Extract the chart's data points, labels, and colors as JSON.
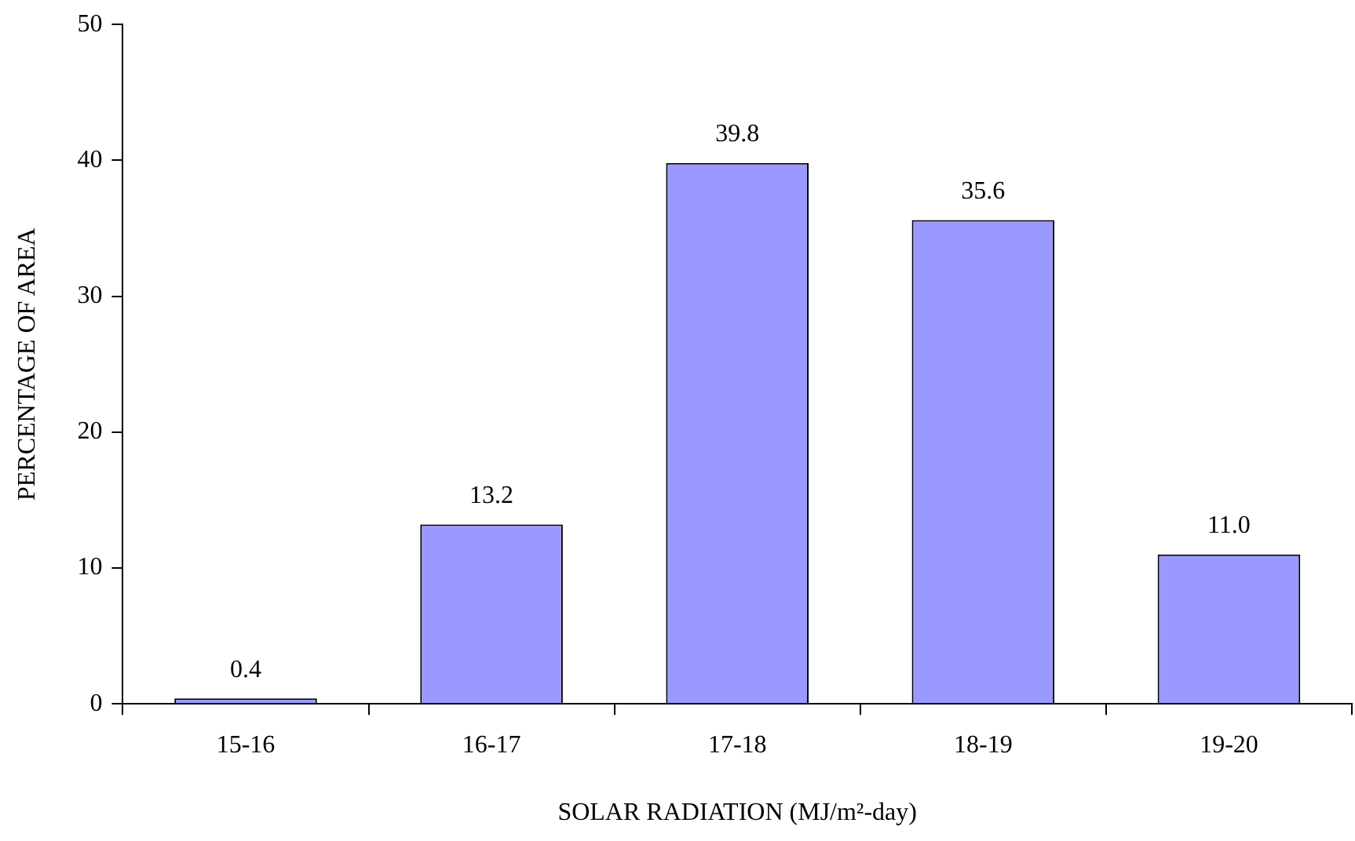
{
  "chart_data": {
    "type": "bar",
    "xlabel": "SOLAR RADIATION (MJ/m²-day)",
    "ylabel": "PERCENTAGE OF AREA",
    "categories": [
      "15-16",
      "16-17",
      "17-18",
      "18-19",
      "19-20"
    ],
    "values": [
      0.4,
      13.2,
      39.8,
      35.6,
      11.0
    ],
    "value_labels": [
      "0.4",
      "13.2",
      "39.8",
      "35.6",
      "11.0"
    ],
    "color": "#9999ff",
    "ylim": [
      0,
      50
    ],
    "yticks": [
      0,
      10,
      20,
      30,
      40,
      50
    ],
    "grid": false,
    "legend": false
  }
}
